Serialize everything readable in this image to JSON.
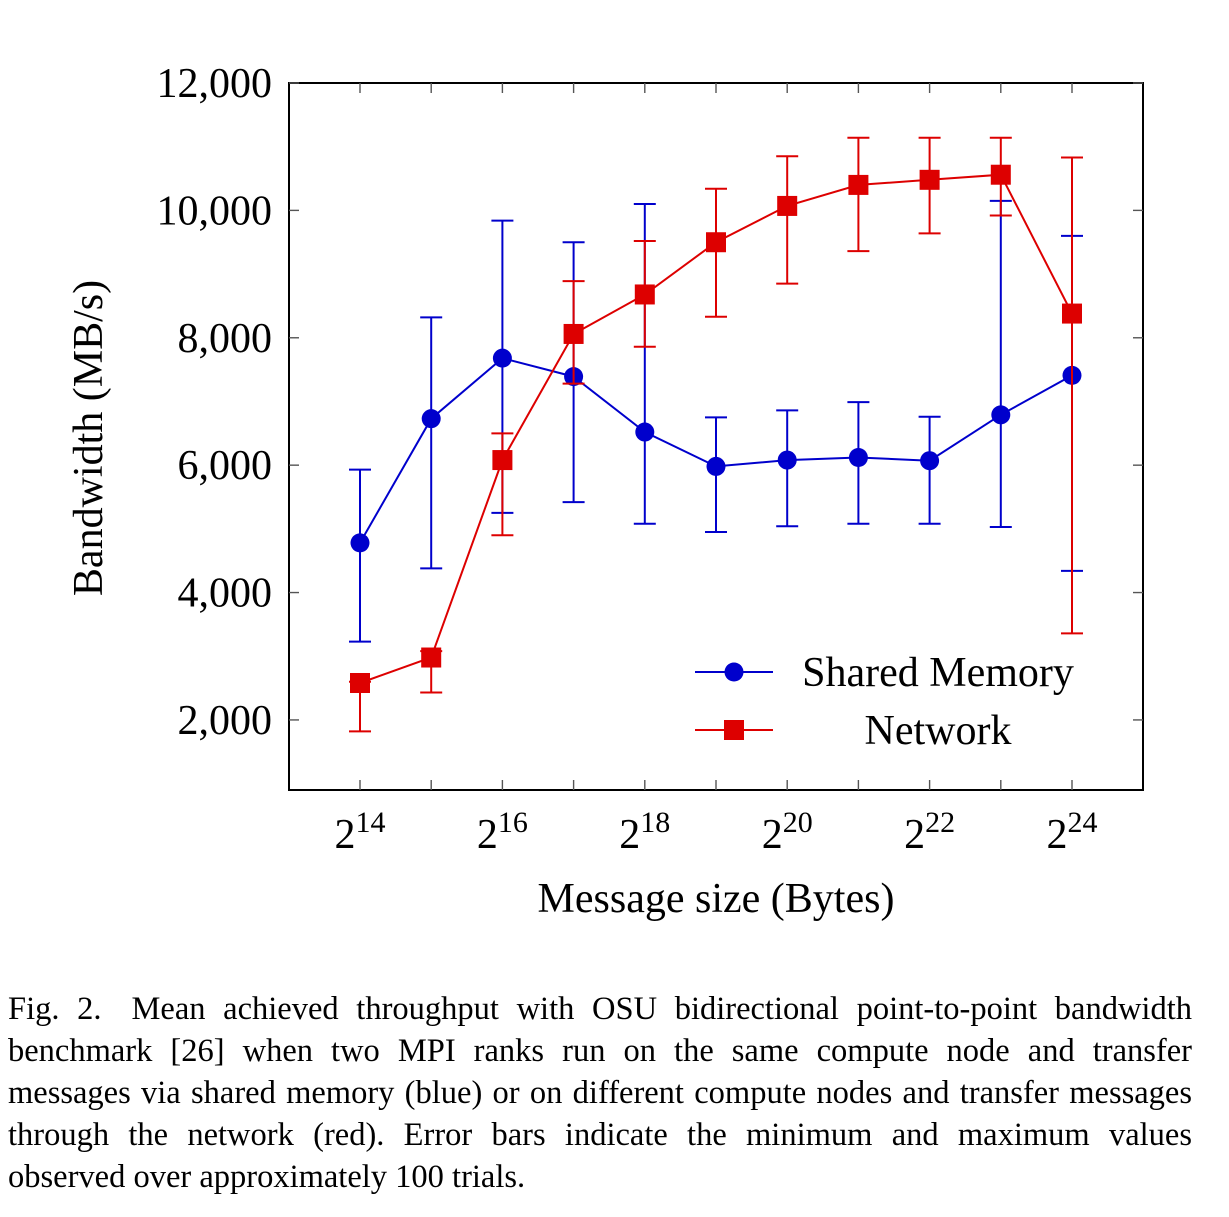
{
  "chart_data": {
    "type": "line",
    "xlabel": "Message size (Bytes)",
    "ylabel": "Bandwidth (MB/s)",
    "x_scale": "log2",
    "x": [
      16384,
      32768,
      65536,
      131072,
      262144,
      524288,
      1048576,
      2097152,
      4194304,
      8388608,
      16777216
    ],
    "x_ticks": [
      {
        "base": "2",
        "exp": "14"
      },
      {
        "base": "2",
        "exp": "16"
      },
      {
        "base": "2",
        "exp": "18"
      },
      {
        "base": "2",
        "exp": "20"
      },
      {
        "base": "2",
        "exp": "22"
      },
      {
        "base": "2",
        "exp": "24"
      }
    ],
    "y_ticks": [
      "2,000",
      "4,000",
      "6,000",
      "8,000",
      "10,000",
      "12,000"
    ],
    "ylim": [
      900,
      12000
    ],
    "grid": false,
    "legend_position": "bottom-right",
    "series": [
      {
        "name": "Shared Memory",
        "color": "#0000cc",
        "marker": "circle",
        "values": [
          4780,
          6730,
          7680,
          7390,
          6520,
          5980,
          6080,
          6120,
          6070,
          6790,
          7410
        ],
        "error_min": [
          3230,
          4380,
          5250,
          5420,
          5080,
          4950,
          5040,
          5080,
          5080,
          5030,
          4340
        ],
        "error_max": [
          5930,
          8320,
          9840,
          9500,
          10100,
          6750,
          6860,
          6990,
          6760,
          10150,
          9600
        ]
      },
      {
        "name": "Network",
        "color": "#dd0000",
        "marker": "square",
        "values": [
          2580,
          2980,
          6080,
          8060,
          8680,
          9500,
          10070,
          10400,
          10480,
          10560,
          8380
        ],
        "error_min": [
          1820,
          2430,
          4900,
          7280,
          7860,
          8330,
          8850,
          9360,
          9640,
          9920,
          3360
        ],
        "error_max": [
          2600,
          3080,
          6500,
          8890,
          9520,
          10340,
          10850,
          11140,
          11140,
          11140,
          10830
        ]
      }
    ]
  },
  "caption": {
    "label": "Fig. 2.",
    "text": "Mean achieved throughput with OSU bidirectional point-to-point bandwidth benchmark [26] when two MPI ranks run on the same compute node and transfer messages via shared memory (blue) or on different compute nodes and transfer messages through the network (red). Error bars indicate the minimum and maximum values observed over approximately 100 trials."
  }
}
